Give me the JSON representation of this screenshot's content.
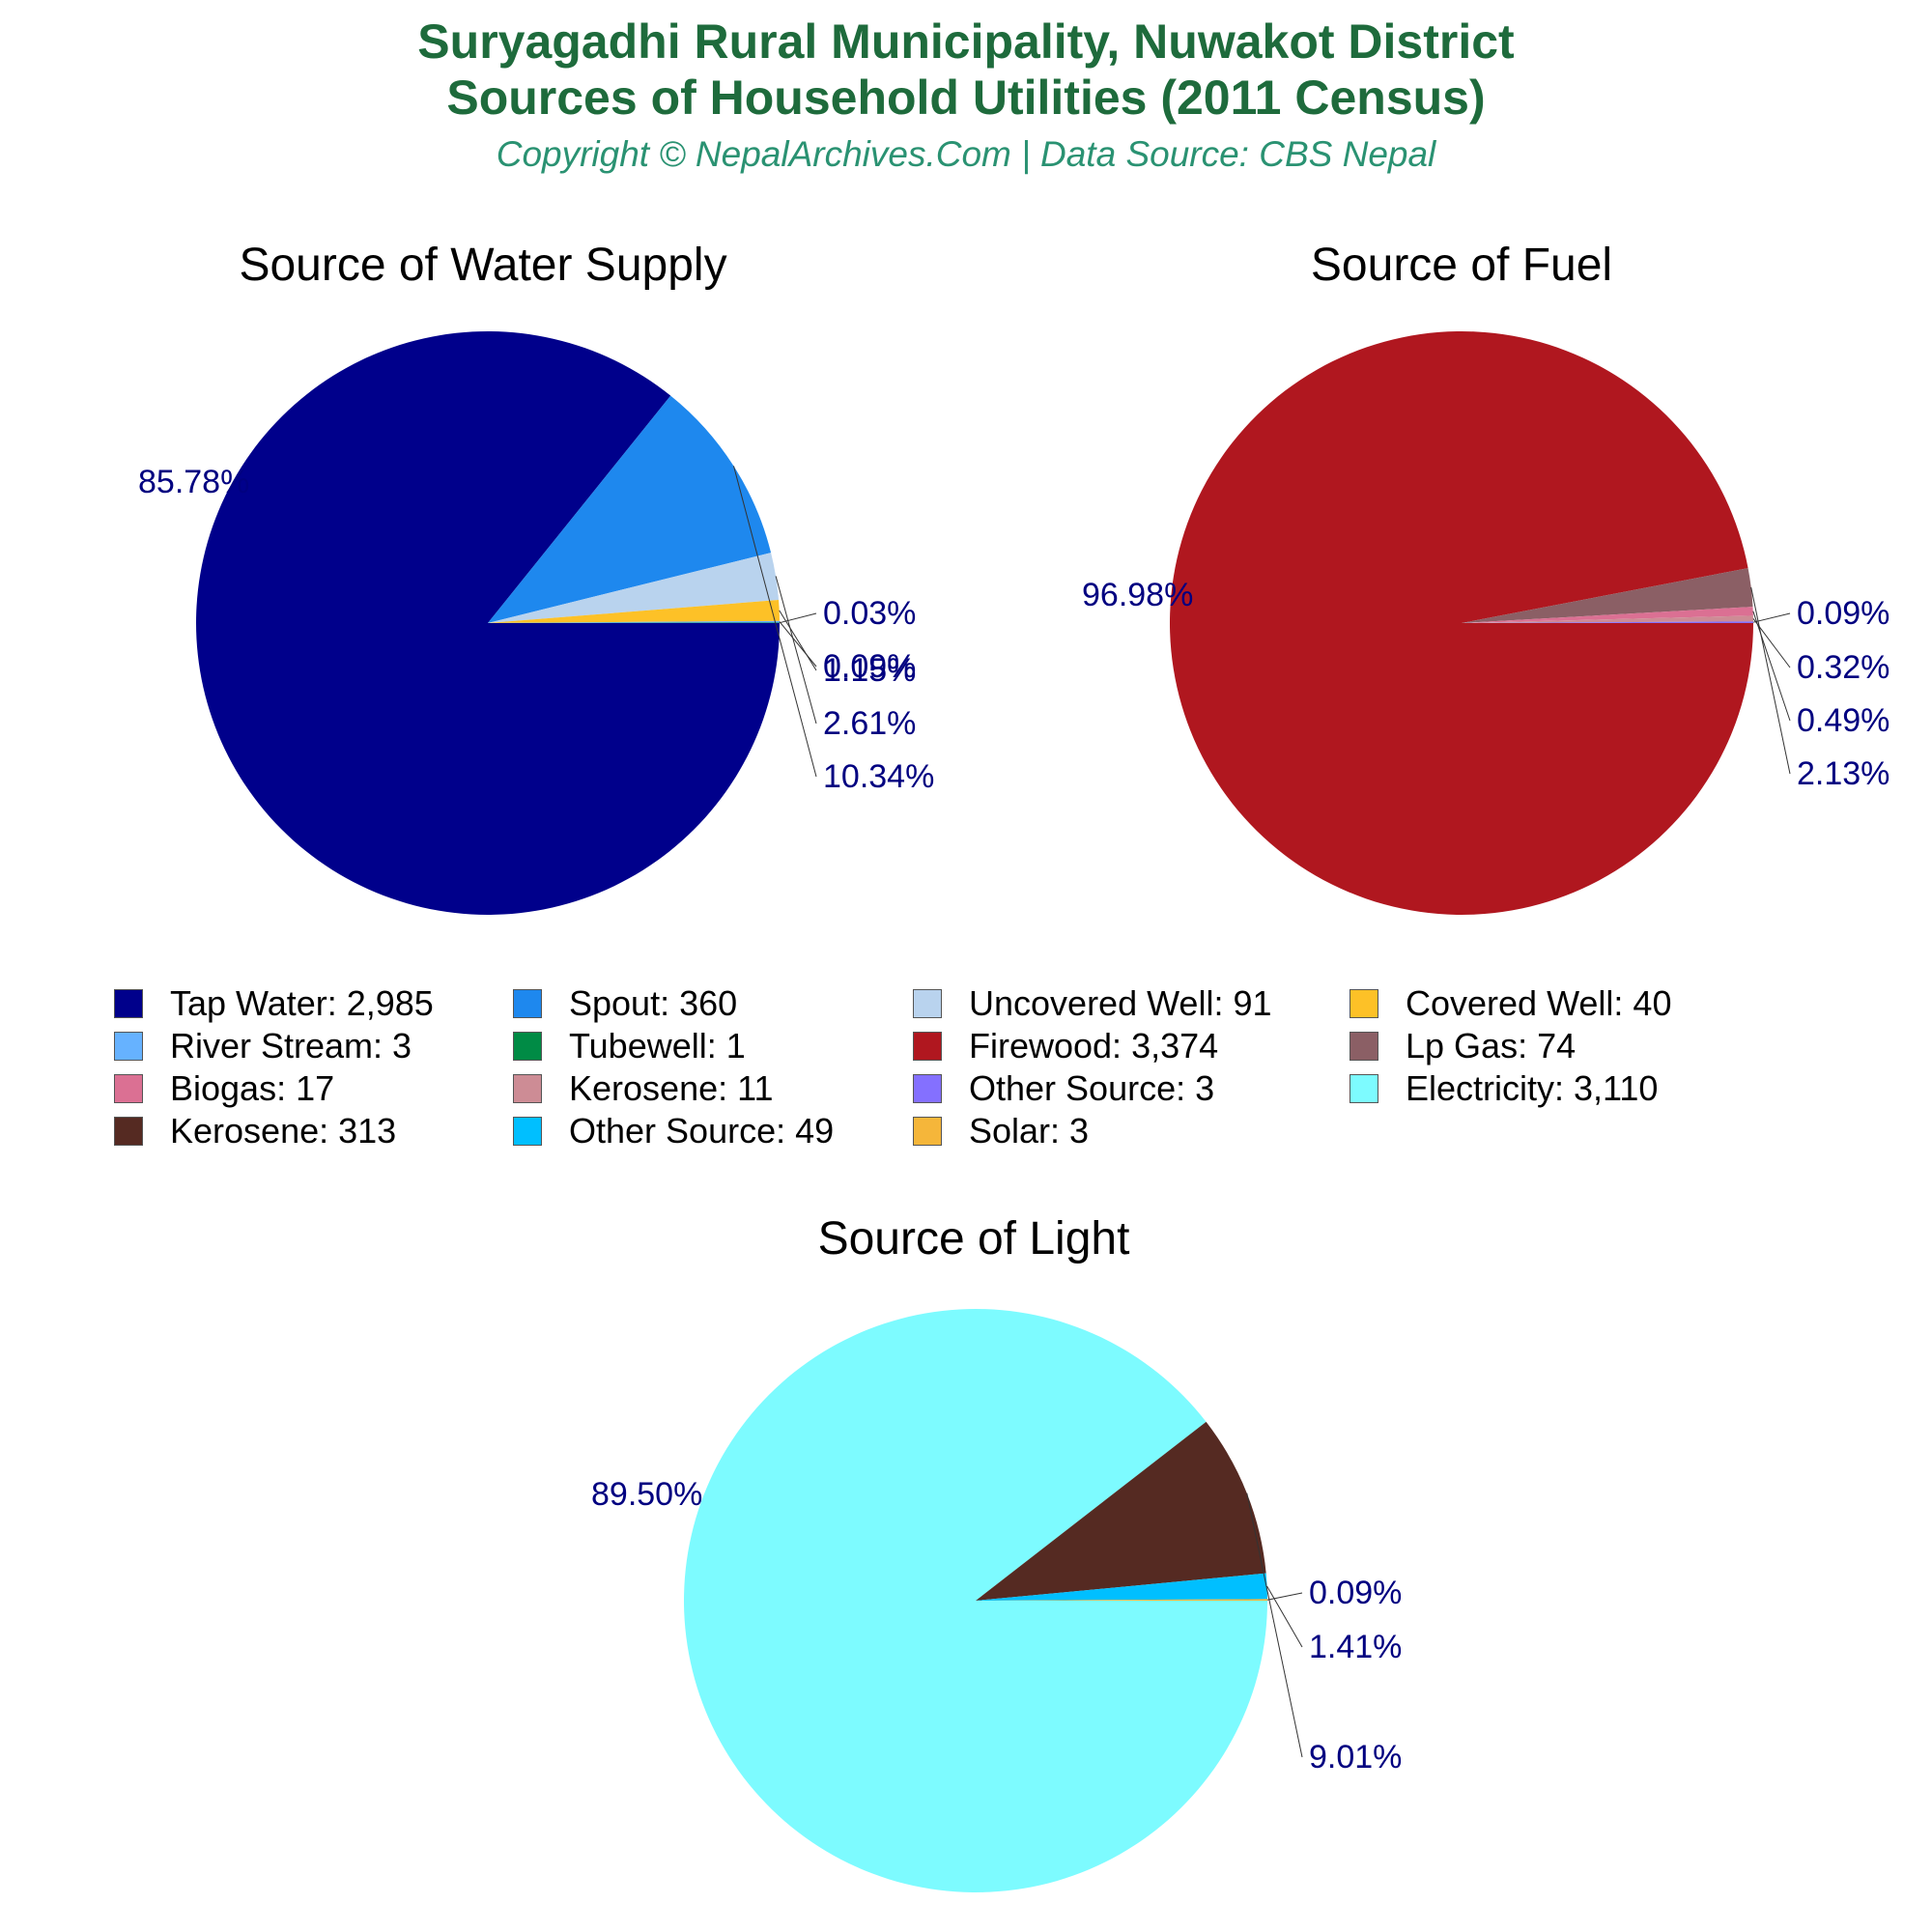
{
  "header": {
    "title_line1": "Suryagadhi Rural Municipality, Nuwakot District",
    "title_line2": "Sources of Household Utilities (2011 Census)",
    "copyright": "Copyright © NepalArchives.Com | Data Source: CBS Nepal"
  },
  "colors": {
    "title": "#1e6b3c",
    "copyright": "#2a9272",
    "percent_label": "#000080",
    "leader_line": "#333333"
  },
  "chart_data": [
    {
      "type": "pie",
      "title": "Source of Water Supply",
      "slices": [
        {
          "label": "Tap Water",
          "value": 2985,
          "percent": "85.78%",
          "color": "#00008b"
        },
        {
          "label": "Spout",
          "value": 360,
          "percent": "10.34%",
          "color": "#1e88ee"
        },
        {
          "label": "Uncovered Well",
          "value": 91,
          "percent": "2.61%",
          "color": "#b9d3ee"
        },
        {
          "label": "Covered Well",
          "value": 40,
          "percent": "1.15%",
          "color": "#fdc127"
        },
        {
          "label": "River Stream",
          "value": 3,
          "percent": "0.09%",
          "color": "#66b2ff"
        },
        {
          "label": "Tubewell",
          "value": 1,
          "percent": "0.03%",
          "color": "#008b45"
        }
      ]
    },
    {
      "type": "pie",
      "title": "Source of Fuel",
      "slices": [
        {
          "label": "Firewood",
          "value": 3374,
          "percent": "96.98%",
          "color": "#b0171f"
        },
        {
          "label": "Lp Gas",
          "value": 74,
          "percent": "2.13%",
          "color": "#8b5f65"
        },
        {
          "label": "Biogas",
          "value": 17,
          "percent": "0.49%",
          "color": "#db7093"
        },
        {
          "label": "Kerosene",
          "value": 11,
          "percent": "0.32%",
          "color": "#cd8c95"
        },
        {
          "label": "Other Source",
          "value": 3,
          "percent": "0.09%",
          "color": "#8470ff"
        }
      ]
    },
    {
      "type": "pie",
      "title": "Source of Light",
      "slices": [
        {
          "label": "Electricity",
          "value": 3110,
          "percent": "89.50%",
          "color": "#7dfbff"
        },
        {
          "label": "Kerosene",
          "value": 313,
          "percent": "9.01%",
          "color": "#552a22"
        },
        {
          "label": "Other Source",
          "value": 49,
          "percent": "1.41%",
          "color": "#00bfff"
        },
        {
          "label": "Solar",
          "value": 3,
          "percent": "0.09%",
          "color": "#f5b63a"
        }
      ]
    }
  ],
  "legend": [
    {
      "text": "Tap Water: 2,985",
      "color": "#00008b"
    },
    {
      "text": "Spout: 360",
      "color": "#1e88ee"
    },
    {
      "text": "Uncovered Well: 91",
      "color": "#b9d3ee"
    },
    {
      "text": "Covered Well: 40",
      "color": "#fdc127"
    },
    {
      "text": "River Stream: 3",
      "color": "#66b2ff"
    },
    {
      "text": "Tubewell: 1",
      "color": "#008b45"
    },
    {
      "text": "Firewood: 3,374",
      "color": "#b0171f"
    },
    {
      "text": "Lp Gas: 74",
      "color": "#8b5f65"
    },
    {
      "text": "Biogas: 17",
      "color": "#db7093"
    },
    {
      "text": "Kerosene: 11",
      "color": "#cd8c95"
    },
    {
      "text": "Other Source: 3",
      "color": "#8470ff"
    },
    {
      "text": "Electricity: 3,110",
      "color": "#7dfbff"
    },
    {
      "text": "Kerosene: 313",
      "color": "#552a22"
    },
    {
      "text": "Other Source: 49",
      "color": "#00bfff"
    },
    {
      "text": "Solar: 3",
      "color": "#f5b63a"
    }
  ]
}
